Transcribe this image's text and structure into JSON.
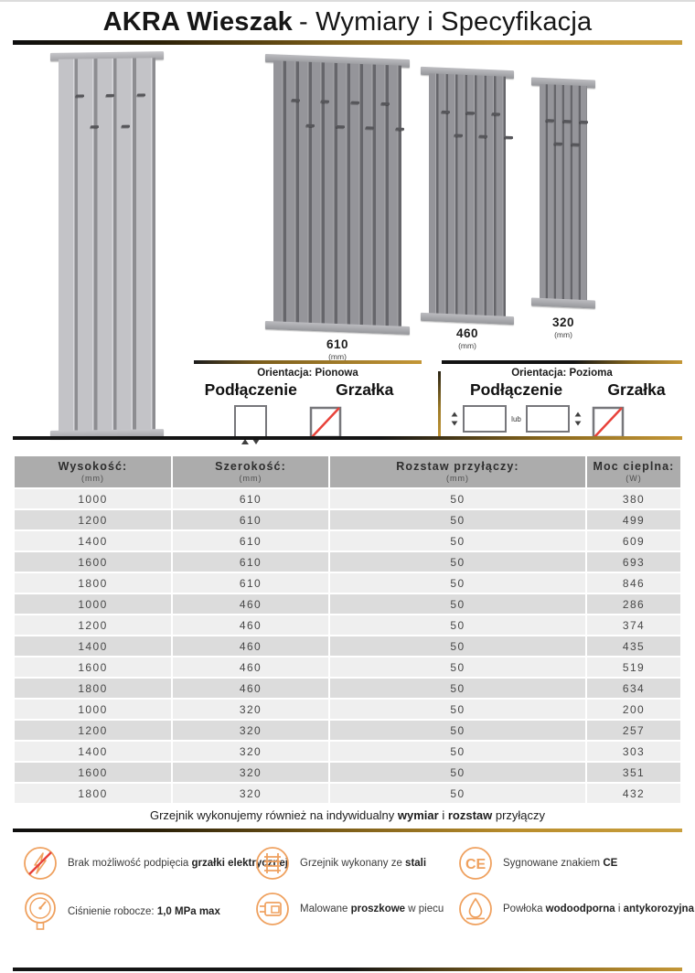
{
  "title": {
    "brand": "AKRA Wieszak",
    "rest": "- Wymiary i Specyfikacja"
  },
  "products": [
    {
      "width": "610",
      "unit": "(mm)"
    },
    {
      "width": "460",
      "unit": "(mm)"
    },
    {
      "width": "320",
      "unit": "(mm)"
    }
  ],
  "orientations": {
    "vertical": {
      "title": "Orientacja: Pionowa",
      "connection": "Podłączenie",
      "heater": "Grzałka"
    },
    "horizontal": {
      "title": "Orientacja: Pozioma",
      "connection": "Podłączenie",
      "heater": "Grzałka",
      "or_label": "lub"
    }
  },
  "table": {
    "headers": [
      {
        "label": "Wysokość:",
        "unit": "(mm)"
      },
      {
        "label": "Szerokość:",
        "unit": "(mm)"
      },
      {
        "label": "Rozstaw przyłączy:",
        "unit": "(mm)"
      },
      {
        "label": "Moc cieplna:",
        "unit": "(W)"
      }
    ],
    "rows": [
      [
        "1000",
        "610",
        "50",
        "380"
      ],
      [
        "1200",
        "610",
        "50",
        "499"
      ],
      [
        "1400",
        "610",
        "50",
        "609"
      ],
      [
        "1600",
        "610",
        "50",
        "693"
      ],
      [
        "1800",
        "610",
        "50",
        "846"
      ],
      [
        "1000",
        "460",
        "50",
        "286"
      ],
      [
        "1200",
        "460",
        "50",
        "374"
      ],
      [
        "1400",
        "460",
        "50",
        "435"
      ],
      [
        "1600",
        "460",
        "50",
        "519"
      ],
      [
        "1800",
        "460",
        "50",
        "634"
      ],
      [
        "1000",
        "320",
        "50",
        "200"
      ],
      [
        "1200",
        "320",
        "50",
        "257"
      ],
      [
        "1400",
        "320",
        "50",
        "303"
      ],
      [
        "1600",
        "320",
        "50",
        "351"
      ],
      [
        "1800",
        "320",
        "50",
        "432"
      ]
    ]
  },
  "note": {
    "parts": [
      {
        "text": "Grzejnik wykonujemy również na indywidualny ",
        "bold": false
      },
      {
        "text": "wymiar",
        "bold": true
      },
      {
        "text": " i ",
        "bold": false
      },
      {
        "text": "rozstaw",
        "bold": true
      },
      {
        "text": " przyłączy",
        "bold": false
      }
    ]
  },
  "features": [
    {
      "icon": "no-electric-heater-icon",
      "parts": [
        {
          "text": "Brak możliwość podpięcia ",
          "bold": false
        },
        {
          "text": "grzałki elektrycznej",
          "bold": true
        }
      ]
    },
    {
      "icon": "steel-radiator-icon",
      "parts": [
        {
          "text": "Grzejnik wykonany ze ",
          "bold": false
        },
        {
          "text": "stali",
          "bold": true
        }
      ]
    },
    {
      "icon": "ce-mark-icon",
      "parts": [
        {
          "text": "Sygnowane znakiem ",
          "bold": false
        },
        {
          "text": "CE",
          "bold": true
        }
      ]
    },
    {
      "icon": "pressure-gauge-icon",
      "parts": [
        {
          "text": "Ciśnienie robocze: ",
          "bold": false
        },
        {
          "text": "1,0 MPa max",
          "bold": true
        }
      ]
    },
    {
      "icon": "powder-coating-icon",
      "parts": [
        {
          "text": "Malowane ",
          "bold": false
        },
        {
          "text": "proszkowe",
          "bold": true
        },
        {
          "text": " w piecu",
          "bold": false
        }
      ]
    },
    {
      "icon": "waterproof-coating-icon",
      "parts": [
        {
          "text": "Powłoka ",
          "bold": false
        },
        {
          "text": "wodoodporna",
          "bold": true
        },
        {
          "text": " i ",
          "bold": false
        },
        {
          "text": "antykorozyjna",
          "bold": true
        }
      ]
    }
  ],
  "colors": {
    "accent_gold": "#c49737",
    "line_dark": "#141414",
    "icon_orange": "#efa15f",
    "alert_red": "#e8423a",
    "table_header_gray": "#acacac",
    "row_light": "#efefef",
    "row_dark": "#dcdcdc"
  }
}
